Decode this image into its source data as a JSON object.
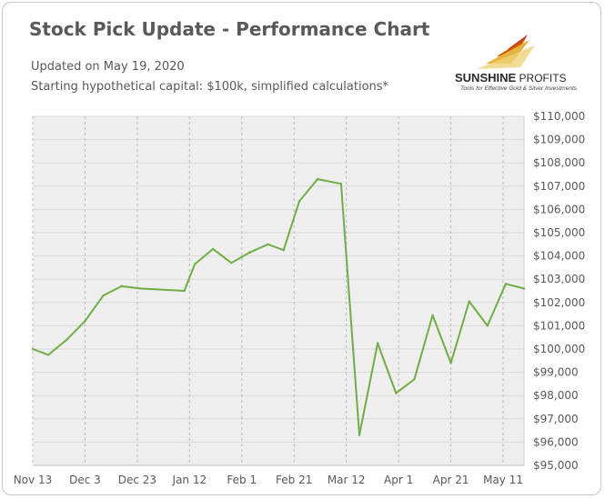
{
  "header": {
    "title": "Stock Pick Update - Performance Chart",
    "updated": "Updated on May 19, 2020",
    "capital_note": "Starting hypothetical capital: $100k, simplified calculations*"
  },
  "logo": {
    "name_bold": "SUNSHINE",
    "name_rest": " PROFITS",
    "tagline": "Tools for Effective Gold & Silver Investments"
  },
  "colors": {
    "line": "#70ad47",
    "plot_bg": "#efefef",
    "grid": "#d9d9d9",
    "text": "#595959"
  },
  "chart_data": {
    "type": "line",
    "title": "Stock Pick Update - Performance Chart",
    "xlabel": "",
    "ylabel": "",
    "x_start": "2019-11-13",
    "x_end": "2020-05-19",
    "ylim": [
      95000,
      110000
    ],
    "y_ticks": [
      95000,
      96000,
      97000,
      98000,
      99000,
      100000,
      101000,
      102000,
      103000,
      104000,
      105000,
      106000,
      107000,
      108000,
      109000,
      110000
    ],
    "y_tick_labels": [
      "$95,000",
      "$96,000",
      "$97,000",
      "$98,000",
      "$99,000",
      "$100,000",
      "$101,000",
      "$102,000",
      "$103,000",
      "$104,000",
      "$105,000",
      "$106,000",
      "$107,000",
      "$108,000",
      "$109,000",
      "$110,000"
    ],
    "x_ticks": [
      "2019-11-13",
      "2019-12-03",
      "2019-12-23",
      "2020-01-12",
      "2020-02-01",
      "2020-02-21",
      "2020-03-12",
      "2020-04-01",
      "2020-04-21",
      "2020-05-11"
    ],
    "x_tick_labels": [
      "Nov 13",
      "Dec 3",
      "Dec 23",
      "Jan 12",
      "Feb 1",
      "Feb 21",
      "Mar 12",
      "Apr 1",
      "Apr 21",
      "May 11"
    ],
    "grid": true,
    "legend": "none",
    "series": [
      {
        "x": [
          "2019-11-13",
          "2019-11-19",
          "2019-11-26",
          "2019-12-03",
          "2019-12-10",
          "2019-12-17",
          "2019-12-24",
          "2020-01-10",
          "2020-01-14",
          "2020-01-21",
          "2020-01-28",
          "2020-02-04",
          "2020-02-11",
          "2020-02-17",
          "2020-02-23",
          "2020-03-01",
          "2020-03-10",
          "2020-03-17",
          "2020-03-24",
          "2020-03-31",
          "2020-04-07",
          "2020-04-14",
          "2020-04-21",
          "2020-04-28",
          "2020-05-05",
          "2020-05-12",
          "2020-05-19"
        ],
        "y": [
          100000,
          99750,
          100400,
          101200,
          102300,
          102700,
          102600,
          102500,
          103650,
          104300,
          103700,
          104150,
          104500,
          104250,
          106350,
          107300,
          107100,
          96300,
          100250,
          98100,
          98700,
          101450,
          99400,
          102050,
          101000,
          102800,
          102600
        ]
      }
    ]
  }
}
